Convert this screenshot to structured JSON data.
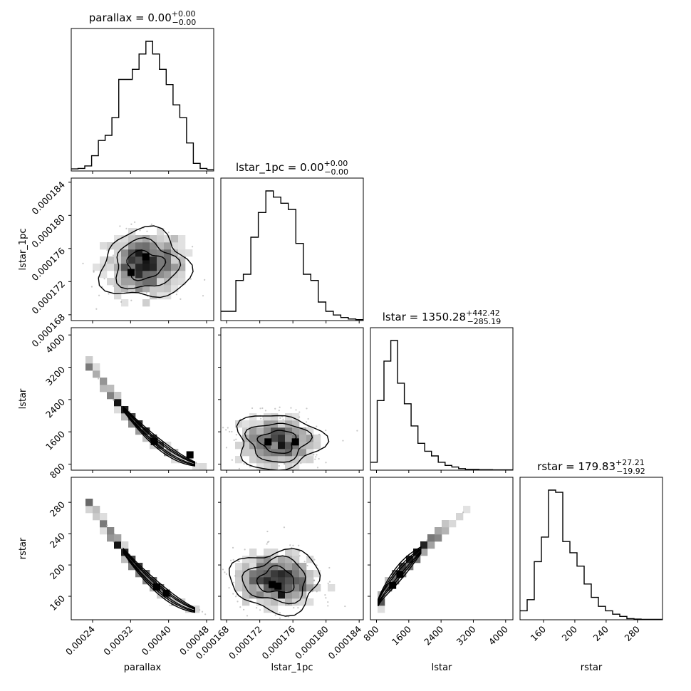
{
  "chart_data": {
    "type": "corner",
    "parameters": [
      {
        "name": "parallax",
        "label": "parallax",
        "title_prefix": "parallax = 0.00",
        "title_plus": "+0.00",
        "title_minus": "−0.00",
        "range": [
          0.000195,
          0.000495
        ],
        "ticks": [
          0.00024,
          0.00032,
          0.0004,
          0.00048
        ],
        "tick_labels": [
          "0.00024",
          "0.00032",
          "0.00040",
          "0.00048"
        ],
        "hist_heights": [
          0.8,
          1,
          2,
          6,
          12,
          14,
          21,
          36,
          36,
          40,
          46,
          51,
          46,
          40,
          34,
          26,
          21,
          11,
          3,
          1,
          0.5
        ]
      },
      {
        "name": "lstar_1pc",
        "label": "lstar_1pc",
        "title_prefix": "lstar_1pc = 0.00",
        "title_plus": "+0.00",
        "title_minus": "−0.00",
        "range": [
          0.0001673,
          0.0001845
        ],
        "ticks": [
          0.000168,
          0.000172,
          0.000176,
          0.00018,
          0.000184
        ],
        "tick_labels": [
          "0.000168",
          "0.000172",
          "0.000176",
          "0.000180",
          "0.000184"
        ],
        "hist_heights": [
          3,
          3,
          13,
          15,
          27,
          35,
          42,
          40,
          38,
          36,
          25,
          15,
          13,
          6,
          3,
          1.8,
          1,
          0.5,
          0.3
        ]
      },
      {
        "name": "lstar",
        "label": "lstar",
        "title_prefix": "lstar = 1350.28",
        "title_plus": "+442.42",
        "title_minus": "−285.19",
        "range": [
          650,
          4180
        ],
        "ticks": [
          800,
          1600,
          2400,
          3200,
          4000
        ],
        "tick_labels": [
          "800",
          "1600",
          "2400",
          "3200",
          "4000"
        ],
        "hist_heights": [
          5,
          44,
          69,
          82,
          55,
          42,
          28,
          17,
          12,
          9,
          5,
          3,
          2,
          1,
          0.5,
          0.5,
          0.3,
          0.3,
          0.2,
          0.2,
          0.2
        ]
      },
      {
        "name": "rstar",
        "label": "rstar",
        "title_prefix": "rstar = 179.83",
        "title_plus": "+27.21",
        "title_minus": "−19.92",
        "range": [
          130,
          312
        ],
        "ticks": [
          160,
          200,
          240,
          280
        ],
        "tick_labels": [
          "160",
          "200",
          "240",
          "280"
        ],
        "hist_heights": [
          4,
          9,
          26,
          37,
          58,
          57,
          35,
          30,
          24,
          16,
          10,
          6,
          4,
          2.5,
          1.5,
          0.5,
          0.3,
          0.2,
          0.2,
          0.2
        ]
      }
    ],
    "panels": [
      {
        "row": 1,
        "col": 0,
        "x": "parallax",
        "y": "lstar_1pc",
        "kind": "blob",
        "center": [
          0.00035,
          0.000174
        ],
        "spread": [
          4.5e-05,
          2e-06
        ],
        "rho": 0.05,
        "peaks": [
          [
            0.000321,
            0.0001731
          ],
          [
            0.000352,
            0.000175
          ]
        ]
      },
      {
        "row": 2,
        "col": 0,
        "x": "parallax",
        "y": "lstar",
        "kind": "curve",
        "param_range": [
          0.000236,
          0.000478
        ],
        "core": [
          0.000305,
          0.000455
        ],
        "peaks": [
          [
            0.00037,
            1360
          ],
          [
            0.000445,
            1030
          ]
        ]
      },
      {
        "row": 2,
        "col": 1,
        "x": "lstar_1pc",
        "y": "lstar",
        "kind": "blob",
        "center": [
          0.0001742,
          1360
        ],
        "spread": [
          2.5e-06,
          330
        ],
        "rho": 0.0,
        "peaks": [
          [
            0.000173,
            1350
          ],
          [
            0.0001763,
            1350
          ]
        ]
      },
      {
        "row": 3,
        "col": 0,
        "x": "parallax",
        "y": "rstar",
        "kind": "curve",
        "param_range": [
          0.000236,
          0.000478
        ],
        "core": [
          0.000305,
          0.000455
        ],
        "peaks": [
          [
            0.000375,
            172
          ],
          [
            0.000395,
            164
          ]
        ]
      },
      {
        "row": 3,
        "col": 1,
        "x": "lstar_1pc",
        "y": "rstar",
        "kind": "blob",
        "center": [
          0.000174,
          180
        ],
        "spread": [
          2.6e-06,
          19
        ],
        "rho": 0.0,
        "peaks": [
          [
            0.0001735,
            175
          ],
          [
            0.0001742,
            173
          ]
        ]
      },
      {
        "row": 3,
        "col": 2,
        "x": "lstar",
        "y": "rstar",
        "kind": "line",
        "param_range": [
          830,
          3200
        ],
        "core": [
          840,
          1900
        ],
        "peaks": [
          [
            1380,
            188
          ],
          [
            1200,
            174
          ]
        ]
      }
    ]
  }
}
